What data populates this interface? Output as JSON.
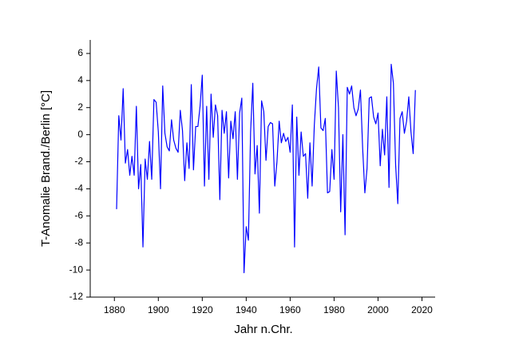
{
  "chart_data": {
    "type": "line",
    "x_label": "Jahr n.Chr.",
    "y_label": "T-Anomalie Brand./Berlin [°C]",
    "color": "#0000ff",
    "xlim": [
      1869,
      2026
    ],
    "xticks": [
      1880,
      1900,
      1920,
      1940,
      1960,
      1980,
      2000,
      2020
    ],
    "ylim": [
      -12,
      7
    ],
    "yticks": [
      -12,
      -10,
      -8,
      -6,
      -4,
      -2,
      0,
      2,
      4,
      6
    ],
    "grid": false,
    "x": [
      1881,
      1882,
      1883,
      1884,
      1885,
      1886,
      1887,
      1888,
      1889,
      1890,
      1891,
      1892,
      1893,
      1894,
      1895,
      1896,
      1897,
      1898,
      1899,
      1900,
      1901,
      1902,
      1903,
      1904,
      1905,
      1906,
      1907,
      1908,
      1909,
      1910,
      1911,
      1912,
      1913,
      1914,
      1915,
      1916,
      1917,
      1918,
      1919,
      1920,
      1921,
      1922,
      1923,
      1924,
      1925,
      1926,
      1927,
      1928,
      1929,
      1930,
      1931,
      1932,
      1933,
      1934,
      1935,
      1936,
      1937,
      1938,
      1939,
      1940,
      1941,
      1942,
      1943,
      1944,
      1945,
      1946,
      1947,
      1948,
      1949,
      1950,
      1951,
      1952,
      1953,
      1954,
      1955,
      1956,
      1957,
      1958,
      1959,
      1960,
      1961,
      1962,
      1963,
      1964,
      1965,
      1966,
      1967,
      1968,
      1969,
      1970,
      1971,
      1972,
      1973,
      1974,
      1975,
      1976,
      1977,
      1978,
      1979,
      1980,
      1981,
      1982,
      1983,
      1984,
      1985,
      1986,
      1987,
      1988,
      1989,
      1990,
      1991,
      1992,
      1993,
      1994,
      1995,
      1996,
      1997,
      1998,
      1999,
      2000,
      2001,
      2002,
      2003,
      2004,
      2005,
      2006,
      2007,
      2008,
      2009,
      2010,
      2011,
      2012,
      2013,
      2014,
      2015,
      2016,
      2017
    ],
    "values": [
      -5.5,
      1.4,
      -0.4,
      3.4,
      -2.1,
      -1.1,
      -3.0,
      -1.6,
      -3.0,
      2.1,
      -4.0,
      -2.2,
      -8.3,
      -1.8,
      -3.3,
      -0.5,
      -3.3,
      2.6,
      2.4,
      0.2,
      -4.0,
      3.6,
      0.1,
      -0.9,
      -1.2,
      1.1,
      -0.4,
      -1.0,
      -1.3,
      1.8,
      0.3,
      -3.4,
      -0.6,
      -2.5,
      3.7,
      -2.6,
      0.6,
      0.6,
      2.1,
      4.4,
      -3.8,
      2.1,
      -3.3,
      3.0,
      -0.2,
      2.2,
      1.4,
      -4.8,
      1.8,
      0.1,
      1.7,
      -3.2,
      1.0,
      -0.3,
      1.7,
      -3.3,
      1.6,
      2.7,
      -10.2,
      -6.8,
      -7.8,
      0.2,
      3.8,
      -2.9,
      -0.8,
      -5.8,
      2.5,
      1.7,
      -1.9,
      0.6,
      0.9,
      0.8,
      -3.8,
      -2.0,
      1.0,
      -0.6,
      0.1,
      -0.5,
      -0.2,
      -1.3,
      2.2,
      -8.3,
      1.3,
      -3.0,
      0.2,
      -1.6,
      -1.4,
      -4.7,
      -0.6,
      -3.8,
      0.7,
      3.4,
      5.0,
      0.5,
      0.3,
      1.2,
      -4.3,
      -4.2,
      -1.1,
      -3.3,
      4.7,
      2.0,
      -5.7,
      0.0,
      -7.4,
      3.5,
      3.0,
      3.6,
      2.0,
      1.4,
      1.9,
      3.3,
      -1.0,
      -4.3,
      -2.5,
      2.7,
      2.8,
      1.3,
      0.8,
      1.6,
      -2.3,
      0.4,
      -1.5,
      2.8,
      -3.9,
      5.2,
      3.8,
      -2.2,
      -5.1,
      1.2,
      1.7,
      0.1,
      1.0,
      2.8,
      0.2,
      -1.4,
      3.3
    ]
  }
}
